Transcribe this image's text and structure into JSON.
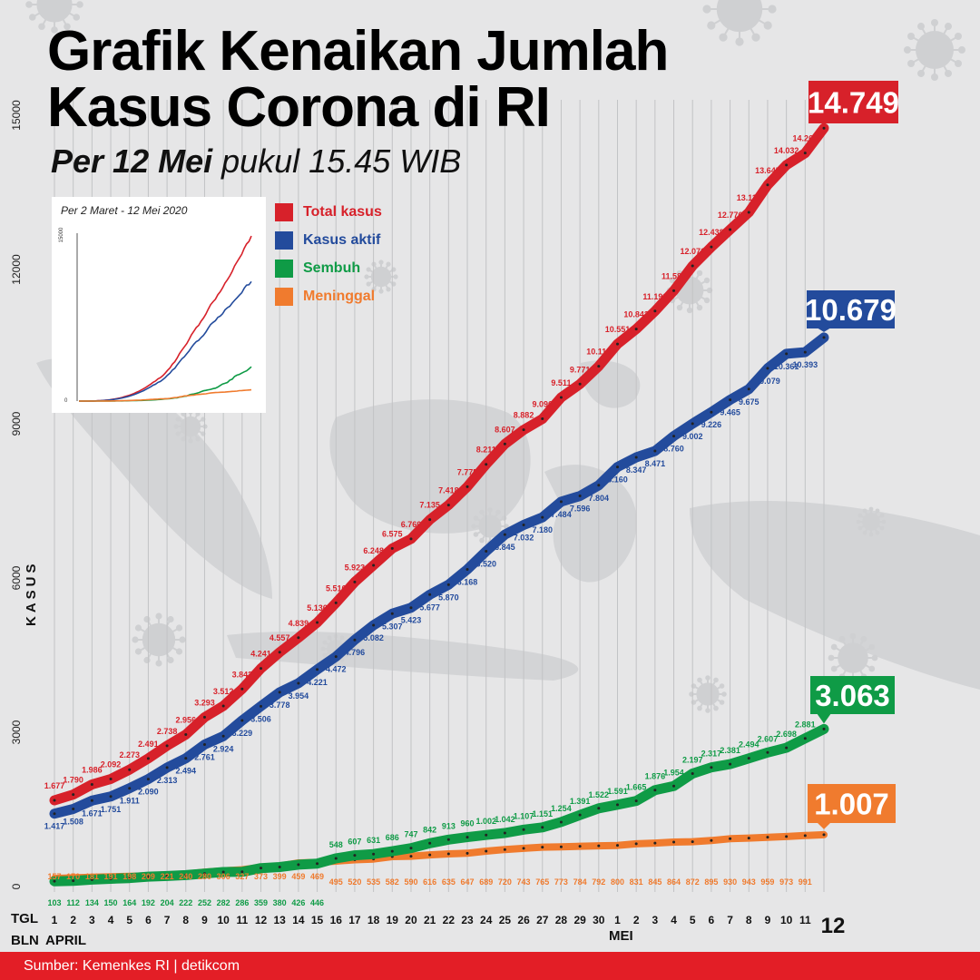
{
  "header": {
    "title_line1": "Grafik Kenaikan Jumlah",
    "title_line2": "Kasus Corona di RI",
    "subtitle_bold": "Per 12 Mei",
    "subtitle_rest": " pukul 15.45 WIB"
  },
  "inset": {
    "caption": "Per 2 Maret - 12 Mei 2020",
    "y_top": "15000",
    "y_zero": "0"
  },
  "legend": [
    {
      "label": "Total kasus",
      "color": "#d7212a"
    },
    {
      "label": "Kasus aktif",
      "color": "#234b9c"
    },
    {
      "label": "Sembuh",
      "color": "#0f9b46"
    },
    {
      "label": "Meninggal",
      "color": "#f07b2e"
    }
  ],
  "axis": {
    "y_label": "KASUS",
    "tgl_label": "TGL",
    "bln_label": "BLN",
    "month_april": "APRIL",
    "month_mei": "MEI"
  },
  "footer": {
    "source": "Sumber: Kemenkes RI | detikcom"
  },
  "chart_data": {
    "type": "line",
    "title": "Grafik Kenaikan Jumlah Kasus Corona di RI",
    "subtitle": "Per 12 Mei pukul 15.45 WIB",
    "ylabel": "KASUS",
    "ylim": [
      0,
      15000
    ],
    "yticks": [
      0,
      3000,
      6000,
      9000,
      12000,
      15000
    ],
    "categories": [
      "1",
      "2",
      "3",
      "4",
      "5",
      "6",
      "7",
      "8",
      "9",
      "10",
      "11",
      "12",
      "13",
      "14",
      "15",
      "16",
      "17",
      "18",
      "19",
      "20",
      "21",
      "22",
      "23",
      "24",
      "25",
      "26",
      "27",
      "28",
      "29",
      "30",
      "1",
      "2",
      "3",
      "4",
      "5",
      "6",
      "7",
      "8",
      "9",
      "10",
      "11",
      "12"
    ],
    "months": [
      {
        "name": "APRIL",
        "start_index": 0
      },
      {
        "name": "MEI",
        "start_index": 30
      }
    ],
    "series": [
      {
        "name": "Total kasus",
        "color": "#d7212a",
        "values": [
          1677,
          1790,
          1986,
          2092,
          2273,
          2491,
          2738,
          2956,
          3293,
          3512,
          3842,
          4241,
          4557,
          4839,
          5136,
          5516,
          5923,
          6248,
          6575,
          6760,
          7135,
          7418,
          7775,
          8211,
          8607,
          8882,
          9096,
          9511,
          9771,
          10118,
          10551,
          10843,
          11192,
          11587,
          12071,
          12438,
          12776,
          13112,
          13645,
          14032,
          14265,
          14749
        ],
        "labels": [
          "1.677",
          "1.790",
          "1.986",
          "2.092",
          "2.273",
          "2.491",
          "2.738",
          "2.956",
          "3.293",
          "3.512",
          "3.842",
          "4.241",
          "4.557",
          "4.839",
          "5.136",
          "5.516",
          "5.923",
          "6.248",
          "6.575",
          "6.760",
          "7.135",
          "7.418",
          "7.775",
          "8.211",
          "8.607",
          "8.882",
          "9.096",
          "9.511",
          "9.771",
          "10.118",
          "10.551",
          "10.843",
          "11.192",
          "11.587",
          "12.071",
          "12.438",
          "12.776",
          "13.112",
          "13.645",
          "14.032",
          "14.265",
          "14.749"
        ],
        "final_label": "14.749"
      },
      {
        "name": "Kasus aktif",
        "color": "#234b9c",
        "values": [
          1417,
          1508,
          1671,
          1751,
          1911,
          2090,
          2313,
          2494,
          2761,
          2924,
          3229,
          3506,
          3778,
          3954,
          4221,
          4472,
          4796,
          5082,
          5307,
          5423,
          5677,
          5870,
          6168,
          6520,
          6845,
          7032,
          7180,
          7484,
          7596,
          7804,
          8160,
          8347,
          8471,
          8760,
          9002,
          9226,
          9465,
          9675,
          10079,
          10361,
          10393,
          10679
        ],
        "labels": [
          "1.417",
          "1.508",
          "1.671",
          "1.751",
          "1.911",
          "2.090",
          "2.313",
          "2.494",
          "2.761",
          "2.924",
          "3.229",
          "3.506",
          "3.778",
          "3.954",
          "4.221",
          "4.472",
          "4.796",
          "5.082",
          "5.307",
          "5.423",
          "5.677",
          "5.870",
          "6.168",
          "6.520",
          "6.845",
          "7.032",
          "7.180",
          "7.484",
          "7.596",
          "7.804",
          "8.160",
          "8.347",
          "8.471",
          "8.760",
          "9.002",
          "9.226",
          "9.465",
          "9.675",
          "10.079",
          "10.361",
          "10.393",
          "10.679"
        ],
        "final_label": "10.679"
      },
      {
        "name": "Sembuh",
        "color": "#0f9b46",
        "values": [
          103,
          112,
          134,
          150,
          164,
          192,
          204,
          222,
          252,
          282,
          286,
          359,
          380,
          426,
          446,
          548,
          607,
          631,
          686,
          747,
          842,
          913,
          960,
          1002,
          1042,
          1107,
          1151,
          1254,
          1391,
          1522,
          1591,
          1665,
          1876,
          1954,
          2197,
          2317,
          2381,
          2494,
          2607,
          2698,
          2881,
          3063
        ],
        "labels": [
          "103",
          "112",
          "134",
          "150",
          "164",
          "192",
          "204",
          "222",
          "252",
          "282",
          "286",
          "359",
          "380",
          "426",
          "446",
          "548",
          "607",
          "631",
          "686",
          "747",
          "842",
          "913",
          "960",
          "1.002",
          "1.042",
          "1.107",
          "1.151",
          "1.254",
          "1.391",
          "1.522",
          "1.591",
          "1.665",
          "1.876",
          "1.954",
          "2.197",
          "2.317",
          "2.381",
          "2.494",
          "2.607",
          "2.698",
          "2.881",
          "3.063"
        ],
        "final_label": "3.063"
      },
      {
        "name": "Meninggal",
        "color": "#f07b2e",
        "values": [
          157,
          170,
          181,
          191,
          198,
          209,
          221,
          240,
          280,
          306,
          327,
          373,
          399,
          459,
          469,
          495,
          520,
          535,
          582,
          590,
          616,
          635,
          647,
          689,
          720,
          743,
          765,
          773,
          784,
          792,
          800,
          831,
          845,
          864,
          872,
          895,
          930,
          943,
          959,
          973,
          991,
          1007
        ],
        "labels": [
          "157",
          "170",
          "181",
          "191",
          "198",
          "209",
          "221",
          "240",
          "280",
          "306",
          "327",
          "373",
          "399",
          "459",
          "469",
          "495",
          "520",
          "535",
          "582",
          "590",
          "616",
          "635",
          "647",
          "689",
          "720",
          "743",
          "765",
          "773",
          "784",
          "792",
          "800",
          "831",
          "845",
          "864",
          "872",
          "895",
          "930",
          "943",
          "959",
          "973",
          "991",
          "1.007"
        ],
        "final_label": "1.007"
      }
    ]
  }
}
